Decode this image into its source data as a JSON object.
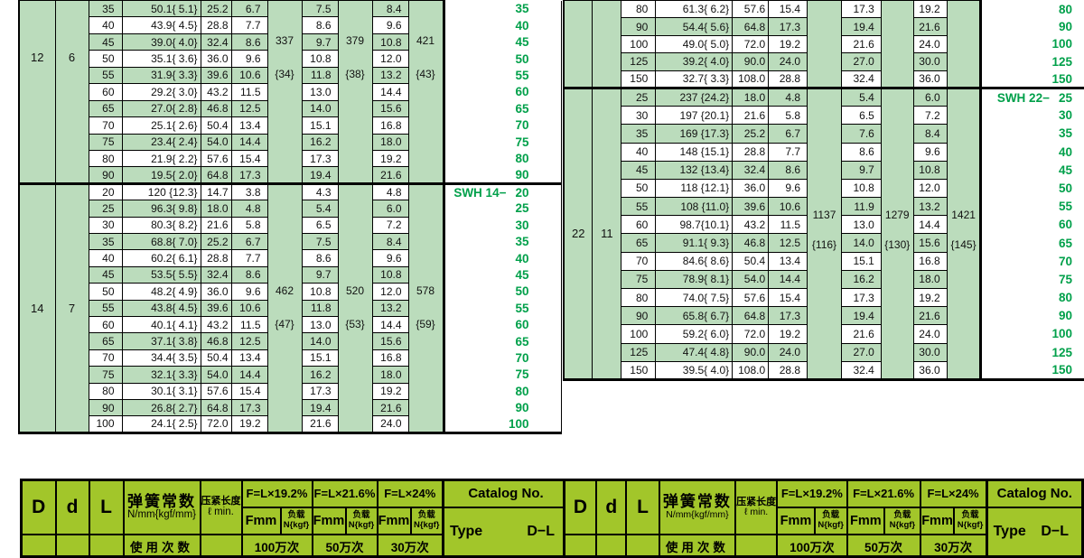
{
  "palette": {
    "cell_green": "#bbdcbc",
    "legend_green": "#a2c62a",
    "catalog_text_green": "#00a04a",
    "border": "#000000"
  },
  "spec_tables": [
    {
      "name": "left",
      "blocks": [
        {
          "D": "12",
          "d": "6",
          "catalog_prefix": "",
          "first_shaded": true,
          "loads": [
            {
              "N": "337",
              "kgf": "{34}"
            },
            {
              "N": "379",
              "kgf": "{38}"
            },
            {
              "N": "421",
              "kgf": "{43}"
            }
          ],
          "rows": [
            [
              "35",
              "50.1{ 5.1}",
              "25.2",
              "6.7",
              "7.5",
              "8.4",
              "35"
            ],
            [
              "40",
              "43.9{ 4.5}",
              "28.8",
              "7.7",
              "8.6",
              "9.6",
              "40"
            ],
            [
              "45",
              "39.0{ 4.0}",
              "32.4",
              "8.6",
              "9.7",
              "10.8",
              "45"
            ],
            [
              "50",
              "35.1{ 3.6}",
              "36.0",
              "9.6",
              "10.8",
              "12.0",
              "50"
            ],
            [
              "55",
              "31.9{ 3.3}",
              "39.6",
              "10.6",
              "11.8",
              "13.2",
              "55"
            ],
            [
              "60",
              "29.2{ 3.0}",
              "43.2",
              "11.5",
              "13.0",
              "14.4",
              "60"
            ],
            [
              "65",
              "27.0{ 2.8}",
              "46.8",
              "12.5",
              "14.0",
              "15.6",
              "65"
            ],
            [
              "70",
              "25.1{ 2.6}",
              "50.4",
              "13.4",
              "15.1",
              "16.8",
              "70"
            ],
            [
              "75",
              "23.4{ 2.4}",
              "54.0",
              "14.4",
              "16.2",
              "18.0",
              "75"
            ],
            [
              "80",
              "21.9{ 2.2}",
              "57.6",
              "15.4",
              "17.3",
              "19.2",
              "80"
            ],
            [
              "90",
              "19.5{ 2.0}",
              "64.8",
              "17.3",
              "19.4",
              "21.6",
              "90"
            ]
          ]
        },
        {
          "D": "14",
          "d": "7",
          "catalog_prefix": "SWH 14−",
          "first_shaded": false,
          "loads": [
            {
              "N": "462",
              "kgf": "{47}"
            },
            {
              "N": "520",
              "kgf": "{53}"
            },
            {
              "N": "578",
              "kgf": "{59}"
            }
          ],
          "rows": [
            [
              "20",
              "120 {12.3}",
              "14.7",
              "3.8",
              "4.3",
              "4.8",
              "20"
            ],
            [
              "25",
              "96.3{ 9.8}",
              "18.0",
              "4.8",
              "5.4",
              "6.0",
              "25"
            ],
            [
              "30",
              "80.3{ 8.2}",
              "21.6",
              "5.8",
              "6.5",
              "7.2",
              "30"
            ],
            [
              "35",
              "68.8{ 7.0}",
              "25.2",
              "6.7",
              "7.5",
              "8.4",
              "35"
            ],
            [
              "40",
              "60.2{ 6.1}",
              "28.8",
              "7.7",
              "8.6",
              "9.6",
              "40"
            ],
            [
              "45",
              "53.5{ 5.5}",
              "32.4",
              "8.6",
              "9.7",
              "10.8",
              "45"
            ],
            [
              "50",
              "48.2{ 4.9}",
              "36.0",
              "9.6",
              "10.8",
              "12.0",
              "50"
            ],
            [
              "55",
              "43.8{ 4.5}",
              "39.6",
              "10.6",
              "11.8",
              "13.2",
              "55"
            ],
            [
              "60",
              "40.1{ 4.1}",
              "43.2",
              "11.5",
              "13.0",
              "14.4",
              "60"
            ],
            [
              "65",
              "37.1{ 3.8}",
              "46.8",
              "12.5",
              "14.0",
              "15.6",
              "65"
            ],
            [
              "70",
              "34.4{ 3.5}",
              "50.4",
              "13.4",
              "15.1",
              "16.8",
              "70"
            ],
            [
              "75",
              "32.1{ 3.3}",
              "54.0",
              "14.4",
              "16.2",
              "18.0",
              "75"
            ],
            [
              "80",
              "30.1{ 3.1}",
              "57.6",
              "15.4",
              "17.3",
              "19.2",
              "80"
            ],
            [
              "90",
              "26.8{ 2.7}",
              "64.8",
              "17.3",
              "19.4",
              "21.6",
              "90"
            ],
            [
              "100",
              "24.1{ 2.5}",
              "72.0",
              "19.2",
              "21.6",
              "24.0",
              "100"
            ]
          ]
        }
      ]
    },
    {
      "name": "right",
      "blocks": [
        {
          "D": "",
          "d": "",
          "catalog_prefix": "",
          "first_shaded": false,
          "loads": [
            {
              "N": "",
              "kgf": ""
            },
            {
              "N": "",
              "kgf": ""
            },
            {
              "N": "",
              "kgf": ""
            }
          ],
          "rows": [
            [
              "80",
              "61.3{ 6.2}",
              "57.6",
              "15.4",
              "17.3",
              "19.2",
              "80"
            ],
            [
              "90",
              "54.4{ 5.6}",
              "64.8",
              "17.3",
              "19.4",
              "21.6",
              "90"
            ],
            [
              "100",
              "49.0{ 5.0}",
              "72.0",
              "19.2",
              "21.6",
              "24.0",
              "100"
            ],
            [
              "125",
              "39.2{ 4.0}",
              "90.0",
              "24.0",
              "27.0",
              "30.0",
              "125"
            ],
            [
              "150",
              "32.7{ 3.3}",
              "108.0",
              "28.8",
              "32.4",
              "36.0",
              "150"
            ]
          ]
        },
        {
          "D": "22",
          "d": "11",
          "catalog_prefix": "SWH 22−",
          "first_shaded": true,
          "loads": [
            {
              "N": "1137",
              "kgf": "{116}"
            },
            {
              "N": "1279",
              "kgf": "{130}"
            },
            {
              "N": "1421",
              "kgf": "{145}"
            }
          ],
          "rows": [
            [
              "25",
              "237 {24.2}",
              "18.0",
              "4.8",
              "5.4",
              "6.0",
              "25"
            ],
            [
              "30",
              "197 {20.1}",
              "21.6",
              "5.8",
              "6.5",
              "7.2",
              "30"
            ],
            [
              "35",
              "169 {17.3}",
              "25.2",
              "6.7",
              "7.6",
              "8.4",
              "35"
            ],
            [
              "40",
              "148 {15.1}",
              "28.8",
              "7.7",
              "8.6",
              "9.6",
              "40"
            ],
            [
              "45",
              "132 {13.4}",
              "32.4",
              "8.6",
              "9.7",
              "10.8",
              "45"
            ],
            [
              "50",
              "118 {12.1}",
              "36.0",
              "9.6",
              "10.8",
              "12.0",
              "50"
            ],
            [
              "55",
              "108 {11.0}",
              "39.6",
              "10.6",
              "11.9",
              "13.2",
              "55"
            ],
            [
              "60",
              "98.7{10.1}",
              "43.2",
              "11.5",
              "13.0",
              "14.4",
              "60"
            ],
            [
              "65",
              "91.1{ 9.3}",
              "46.8",
              "12.5",
              "14.0",
              "15.6",
              "65"
            ],
            [
              "70",
              "84.6{ 8.6}",
              "50.4",
              "13.4",
              "15.1",
              "16.8",
              "70"
            ],
            [
              "75",
              "78.9{ 8.1}",
              "54.0",
              "14.4",
              "16.2",
              "18.0",
              "75"
            ],
            [
              "80",
              "74.0{ 7.5}",
              "57.6",
              "15.4",
              "17.3",
              "19.2",
              "80"
            ],
            [
              "90",
              "65.8{ 6.7}",
              "64.8",
              "17.3",
              "19.4",
              "21.6",
              "90"
            ],
            [
              "100",
              "59.2{ 6.0}",
              "72.0",
              "19.2",
              "21.6",
              "24.0",
              "100"
            ],
            [
              "125",
              "47.4{ 4.8}",
              "90.0",
              "24.0",
              "27.0",
              "30.0",
              "125"
            ],
            [
              "150",
              "39.5{ 4.0}",
              "108.0",
              "28.8",
              "32.4",
              "36.0",
              "150"
            ]
          ]
        }
      ]
    }
  ],
  "legend": {
    "D": "D",
    "d": "d",
    "L": "L",
    "spring_title": "弹簧常数",
    "spring_sub": "N/mm{kgf/mm}",
    "clamp_title": "压紧长度",
    "clamp_sub": "ℓ min.",
    "f_headers": [
      "F=L×19.2%",
      "F=L×21.6%",
      "F=L×24%"
    ],
    "fmm": "Fmm",
    "load_line1": "负载",
    "load_line2": "N{kgf}",
    "catalog": "Catalog  No.",
    "type_word": "Type",
    "type_code": "D−L",
    "usage_label": "使用次数",
    "usage_values": [
      "100万次",
      "50万次",
      "30万次"
    ]
  }
}
